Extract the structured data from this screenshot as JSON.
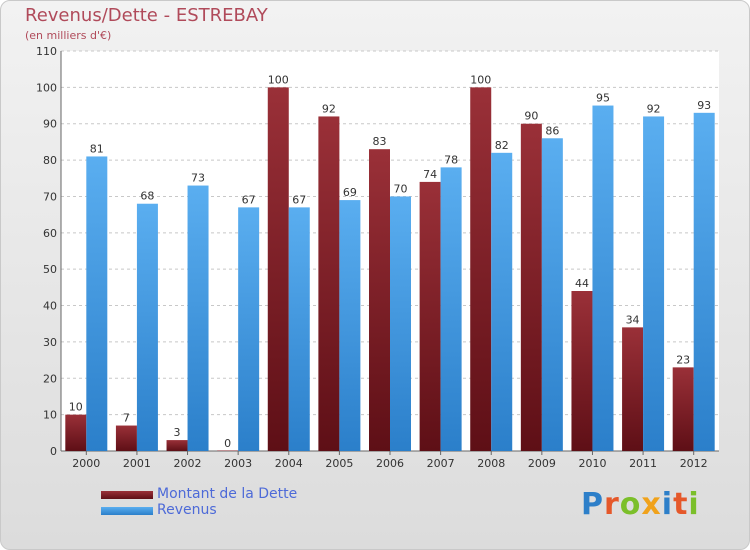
{
  "chart_data": {
    "type": "bar",
    "title": "Revenus/Dette - ESTREBAY",
    "subtitle": "(en milliers d'€)",
    "xlabel": "",
    "ylabel": "",
    "categories": [
      "2000",
      "2001",
      "2002",
      "2003",
      "2004",
      "2005",
      "2006",
      "2007",
      "2008",
      "2009",
      "2010",
      "2011",
      "2012"
    ],
    "series": [
      {
        "name": "Montant de la Dette",
        "color": "#7a1a22",
        "values": [
          10,
          7,
          3,
          0,
          100,
          92,
          83,
          74,
          100,
          90,
          44,
          34,
          23
        ]
      },
      {
        "name": "Revenus",
        "color": "#3f97e2",
        "values": [
          81,
          68,
          73,
          67,
          67,
          69,
          70,
          78,
          82,
          86,
          95,
          92,
          93
        ]
      }
    ],
    "ylim": [
      0,
      110
    ],
    "yticks": [
      0,
      10,
      20,
      30,
      40,
      50,
      60,
      70,
      80,
      90,
      100,
      110
    ],
    "grid": true,
    "legend_position": "bottom-left"
  },
  "brand": {
    "letters": [
      {
        "ch": "P",
        "color": "#2d7fc9"
      },
      {
        "ch": "r",
        "color": "#e5582a"
      },
      {
        "ch": "o",
        "color": "#7bbf2a"
      },
      {
        "ch": "x",
        "color": "#f0a21b"
      },
      {
        "ch": "i",
        "color": "#2d7fc9"
      },
      {
        "ch": "t",
        "color": "#e5582a"
      },
      {
        "ch": "i",
        "color": "#7bbf2a"
      }
    ]
  }
}
